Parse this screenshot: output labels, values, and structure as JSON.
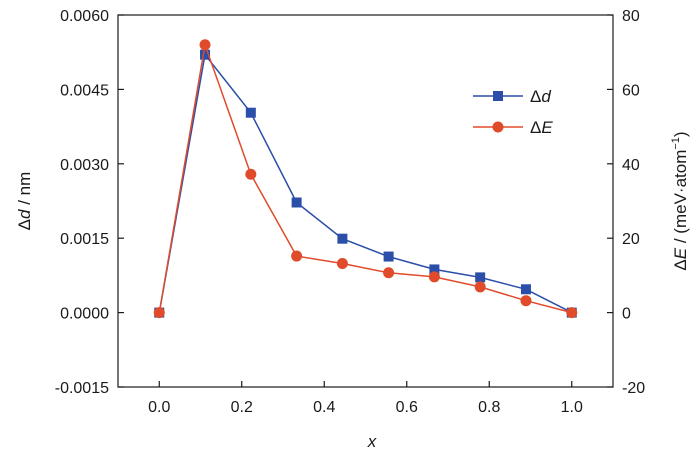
{
  "chart_data": {
    "type": "line",
    "x": [
      0.0,
      0.111,
      0.222,
      0.333,
      0.444,
      0.556,
      0.667,
      0.778,
      0.889,
      1.0
    ],
    "series": [
      {
        "name_symbol": "Δ",
        "name_var": "d",
        "axis": "left",
        "color": "#2b4ea8",
        "marker": "square",
        "values": [
          0.0,
          0.0052,
          0.00403,
          0.00222,
          0.00149,
          0.00113,
          0.00087,
          0.00071,
          0.00047,
          0.0
        ]
      },
      {
        "name_symbol": "Δ",
        "name_var": "E",
        "axis": "right",
        "color": "#e04b2b",
        "marker": "circle",
        "values": [
          0.0,
          72.0,
          37.2,
          15.2,
          13.2,
          10.7,
          9.6,
          6.9,
          3.2,
          0.0
        ]
      }
    ],
    "xaxis": {
      "label": "x",
      "ticks": [
        "0.0",
        "0.2",
        "0.4",
        "0.6",
        "0.8",
        "1.0"
      ],
      "tick_values": [
        0.0,
        0.2,
        0.4,
        0.6,
        0.8,
        1.0
      ],
      "range": [
        -0.1,
        1.1
      ]
    },
    "yaxis_left": {
      "label_symbol": "Δ",
      "label_var": "d",
      "label_rest": " / nm",
      "ticks": [
        "-0.0015",
        "0.0000",
        "0.0015",
        "0.0030",
        "0.0045",
        "0.0060"
      ],
      "tick_values": [
        -0.0015,
        0.0,
        0.0015,
        0.003,
        0.0045,
        0.006
      ],
      "range": [
        -0.0015,
        0.006
      ]
    },
    "yaxis_right": {
      "label_symbol": "Δ",
      "label_var": "E",
      "label_rest": " / (meV·atom",
      "label_sup": "−1",
      "label_close": ")",
      "ticks": [
        "-20",
        "0",
        "20",
        "40",
        "60",
        "80"
      ],
      "tick_values": [
        -20,
        0,
        20,
        40,
        60,
        80
      ],
      "range": [
        -20,
        80
      ]
    },
    "legend": {
      "position": "top-right"
    },
    "grid": false
  }
}
